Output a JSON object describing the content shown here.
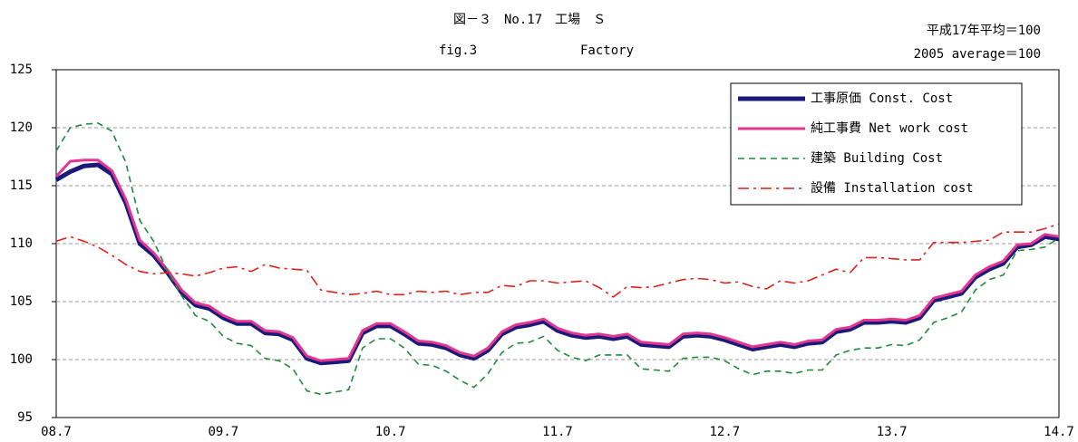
{
  "chart_data": {
    "type": "line",
    "title": "図－３　No.17　工場　Ｓ",
    "subtitle": "fig.3",
    "subtitle2": "Factory",
    "note": "平成17年平均＝100",
    "note2": "2005 average＝100",
    "categories": [
      "08.7",
      null,
      null,
      null,
      null,
      null,
      null,
      null,
      null,
      null,
      null,
      null,
      "09.7",
      null,
      null,
      null,
      null,
      null,
      null,
      null,
      null,
      null,
      null,
      null,
      "10.7",
      null,
      null,
      null,
      null,
      null,
      null,
      null,
      null,
      null,
      null,
      null,
      "11.7",
      null,
      null,
      null,
      null,
      null,
      null,
      null,
      null,
      null,
      null,
      null,
      "12.7",
      null,
      null,
      null,
      null,
      null,
      null,
      null,
      null,
      null,
      null,
      null,
      "13.7",
      null,
      null,
      null,
      null,
      null,
      null,
      null,
      null,
      null,
      null,
      null,
      "14.7"
    ],
    "ylim": [
      95,
      125
    ],
    "yticks": [
      95,
      100,
      105,
      110,
      115,
      120,
      125
    ],
    "grid": true,
    "legend": "top-right",
    "series": [
      {
        "name": "工事原価 Const. Cost",
        "color": "#1a1a7a",
        "width": 5,
        "dash": "solid",
        "values": [
          115.5,
          116.2,
          116.7,
          116.8,
          116.0,
          113.5,
          110.0,
          109.0,
          107.5,
          105.8,
          104.7,
          104.4,
          103.6,
          103.1,
          103.1,
          102.3,
          102.2,
          101.7,
          100.1,
          99.7,
          99.8,
          99.9,
          102.3,
          102.9,
          102.9,
          102.2,
          101.4,
          101.3,
          101.0,
          100.4,
          100.1,
          100.8,
          102.2,
          102.8,
          103.0,
          103.3,
          102.5,
          102.1,
          101.9,
          102.0,
          101.8,
          102.0,
          101.3,
          101.2,
          101.1,
          102.0,
          102.1,
          102.0,
          101.7,
          101.3,
          100.9,
          101.1,
          101.3,
          101.1,
          101.4,
          101.5,
          102.4,
          102.6,
          103.2,
          103.2,
          103.3,
          103.2,
          103.6,
          105.1,
          105.4,
          105.7,
          107.1,
          107.8,
          108.3,
          109.7,
          109.9,
          110.6,
          110.4
        ]
      },
      {
        "name": "純工事費 Net work cost",
        "color": "#e6358f",
        "width": 3,
        "dash": "solid",
        "values": [
          115.8,
          117.1,
          117.2,
          117.2,
          116.3,
          113.8,
          110.3,
          109.2,
          107.7,
          106.0,
          104.9,
          104.6,
          103.8,
          103.3,
          103.3,
          102.5,
          102.4,
          101.9,
          100.3,
          99.9,
          100.0,
          100.1,
          102.5,
          103.1,
          103.1,
          102.4,
          101.6,
          101.5,
          101.2,
          100.6,
          100.3,
          101.0,
          102.4,
          103.0,
          103.2,
          103.5,
          102.7,
          102.3,
          102.1,
          102.2,
          102.0,
          102.2,
          101.5,
          101.4,
          101.3,
          102.2,
          102.3,
          102.2,
          101.9,
          101.5,
          101.1,
          101.3,
          101.5,
          101.3,
          101.6,
          101.7,
          102.6,
          102.8,
          103.4,
          103.4,
          103.5,
          103.4,
          103.8,
          105.3,
          105.6,
          105.9,
          107.3,
          108.0,
          108.5,
          109.9,
          110.0,
          110.8,
          110.6
        ]
      },
      {
        "name": "建築 Building Cost",
        "color": "#1e8a3a",
        "width": 1.6,
        "dash": "dashed",
        "values": [
          118.0,
          120.0,
          120.3,
          120.4,
          119.7,
          117.0,
          112.0,
          110.2,
          107.6,
          105.5,
          103.8,
          103.3,
          102.0,
          101.4,
          101.2,
          100.1,
          99.9,
          99.2,
          97.3,
          97.0,
          97.2,
          97.4,
          101.0,
          101.8,
          101.8,
          101.0,
          99.6,
          99.5,
          99.0,
          98.2,
          97.6,
          98.8,
          100.6,
          101.4,
          101.5,
          102.0,
          100.8,
          100.2,
          99.9,
          100.4,
          100.4,
          100.4,
          99.2,
          99.1,
          99.0,
          100.1,
          100.2,
          100.2,
          99.9,
          99.2,
          98.7,
          99.0,
          99.0,
          98.8,
          99.1,
          99.1,
          100.4,
          100.8,
          101.0,
          101.0,
          101.3,
          101.2,
          101.7,
          103.2,
          103.6,
          104.1,
          106.0,
          106.9,
          107.3,
          109.4,
          109.5,
          109.7,
          110.5
        ]
      },
      {
        "name": "設備 Installation cost",
        "color": "#e0201a",
        "width": 1.6,
        "dash": "dashdot",
        "values": [
          110.2,
          110.6,
          110.2,
          109.7,
          109.0,
          108.2,
          107.6,
          107.4,
          107.5,
          107.4,
          107.2,
          107.5,
          107.9,
          108.0,
          107.6,
          108.2,
          107.9,
          107.8,
          107.7,
          106.0,
          105.8,
          105.6,
          105.7,
          105.9,
          105.6,
          105.6,
          105.9,
          105.8,
          105.9,
          105.6,
          105.8,
          105.8,
          106.4,
          106.3,
          106.8,
          106.8,
          106.6,
          106.7,
          106.8,
          106.2,
          105.4,
          106.3,
          106.2,
          106.3,
          106.6,
          106.9,
          107.0,
          106.9,
          106.6,
          106.7,
          106.3,
          106.1,
          106.8,
          106.6,
          106.8,
          107.3,
          107.8,
          107.5,
          108.8,
          108.8,
          108.7,
          108.6,
          108.6,
          110.1,
          110.1,
          110.1,
          110.2,
          110.3,
          111.0,
          111.0,
          111.0,
          111.3,
          111.7
        ]
      }
    ]
  }
}
